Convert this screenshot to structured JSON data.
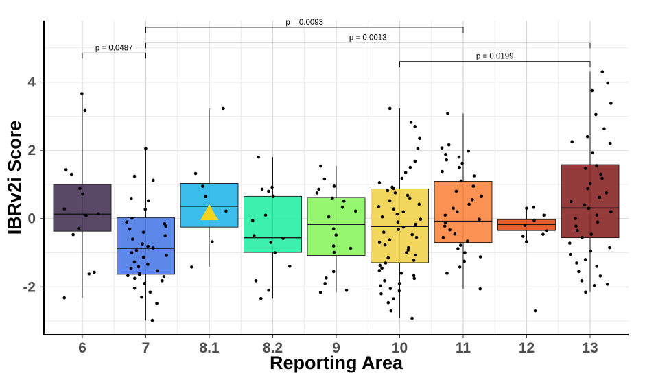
{
  "chart_data": {
    "type": "box",
    "xlabel": "Reporting Area",
    "ylabel": "IBRv2i Score",
    "ylim": [
      -3.4,
      5.8
    ],
    "yticks": [
      -2,
      0,
      2,
      4
    ],
    "categories": [
      "6",
      "7",
      "8.1",
      "8.2",
      "9",
      "10",
      "11",
      "12",
      "13"
    ],
    "grid": true,
    "boxes": [
      {
        "category": "6",
        "q1": -0.37,
        "median": 0.13,
        "q3": 1.0,
        "whisker_low": -2.32,
        "whisker_high": 3.66,
        "color": "#4b3a5a"
      },
      {
        "category": "7",
        "q1": -1.63,
        "median": -0.87,
        "q3": 0.03,
        "whisker_low": -2.98,
        "whisker_high": 2.05,
        "color": "#4f7de6"
      },
      {
        "category": "8.1",
        "q1": -0.25,
        "median": 0.36,
        "q3": 1.03,
        "whisker_low": -1.42,
        "whisker_high": 3.23,
        "color": "#2ab8ea"
      },
      {
        "category": "8.2",
        "q1": -0.99,
        "median": -0.56,
        "q3": 0.65,
        "whisker_low": -2.34,
        "whisker_high": 1.8,
        "color": "#2cefa6"
      },
      {
        "category": "9",
        "q1": -1.08,
        "median": -0.17,
        "q3": 0.62,
        "whisker_low": -2.16,
        "whisker_high": 1.54,
        "color": "#8ef563"
      },
      {
        "category": "10",
        "q1": -1.29,
        "median": -0.23,
        "q3": 0.87,
        "whisker_low": -2.92,
        "whisker_high": 3.23,
        "color": "#f2d34f"
      },
      {
        "category": "11",
        "q1": -0.7,
        "median": -0.08,
        "q3": 1.09,
        "whisker_low": -2.06,
        "whisker_high": 3.08,
        "color": "#fb8843"
      },
      {
        "category": "12",
        "q1": -0.35,
        "median": -0.17,
        "q3": -0.03,
        "whisker_low": -0.68,
        "whisker_high": 0.33,
        "color": "#e4531c"
      },
      {
        "category": "13",
        "q1": -0.56,
        "median": 0.31,
        "q3": 1.58,
        "whisker_low": -2.15,
        "whisker_high": 4.3,
        "color": "#8b2a2a"
      }
    ],
    "mean_marker": {
      "category": "8.1",
      "y": 0.16,
      "shape": "triangle",
      "color": "#f2d31d"
    },
    "points": {
      "6": [
        3.66,
        3.17,
        1.43,
        1.3,
        0.88,
        0.72,
        0.28,
        0.14,
        0.08,
        -0.29,
        -0.47,
        -1.57,
        -1.62,
        -2.32
      ],
      "7": [
        2.05,
        1.24,
        1.12,
        0.59,
        0.52,
        0.27,
        0.01,
        -0.1,
        -0.15,
        -0.22,
        -0.31,
        -0.4,
        -0.5,
        -0.6,
        -0.74,
        -0.81,
        -0.86,
        -0.93,
        -1.0,
        -1.08,
        -1.13,
        -1.27,
        -1.34,
        -1.41,
        -1.46,
        -1.53,
        -1.6,
        -1.64,
        -1.67,
        -1.7,
        -1.75,
        -1.82,
        -1.9,
        -2.04,
        -2.15,
        -2.3,
        -2.48,
        -2.98
      ],
      "8.1": [
        3.23,
        1.32,
        0.95,
        0.65,
        0.22,
        -0.68,
        -1.42
      ],
      "8.2": [
        1.8,
        0.92,
        0.86,
        0.8,
        0.66,
        0.1,
        -0.06,
        -0.5,
        -0.58,
        -0.7,
        -1.0,
        -1.4,
        -1.82,
        -2.1,
        -2.34
      ],
      "9": [
        1.54,
        1.16,
        0.95,
        0.86,
        0.75,
        0.6,
        0.51,
        0.33,
        0.22,
        0.05,
        -0.3,
        -0.48,
        -0.8,
        -0.87,
        -0.99,
        -1.55,
        -1.74,
        -1.9,
        -2.1,
        -2.16
      ],
      "10": [
        3.23,
        2.82,
        2.7,
        2.35,
        2.05,
        1.68,
        1.5,
        1.35,
        1.18,
        1.05,
        0.92,
        0.88,
        0.82,
        0.75,
        0.68,
        0.6,
        0.52,
        0.42,
        0.35,
        0.28,
        0.2,
        0.13,
        0.05,
        -0.02,
        -0.1,
        -0.17,
        -0.25,
        -0.32,
        -0.4,
        -0.47,
        -0.55,
        -0.62,
        -0.7,
        -0.77,
        -0.85,
        -0.92,
        -1.0,
        -1.07,
        -1.15,
        -1.22,
        -1.3,
        -1.37,
        -1.45,
        -1.52,
        -1.6,
        -1.67,
        -1.75,
        -1.82,
        -1.9,
        -1.97,
        -2.05,
        -2.12,
        -2.2,
        -2.35,
        -2.46,
        -2.7,
        -2.92
      ],
      "11": [
        3.08,
        2.16,
        2.07,
        1.98,
        1.88,
        1.8,
        1.72,
        1.62,
        1.5,
        1.38,
        1.25,
        1.1,
        0.95,
        0.8,
        0.66,
        0.55,
        0.42,
        0.3,
        0.2,
        0.1,
        -0.02,
        -0.12,
        -0.22,
        -0.33,
        -0.45,
        -0.55,
        -0.66,
        -0.78,
        -0.88,
        -1.0,
        -1.12,
        -1.25,
        -1.42,
        -1.6,
        -2.06
      ],
      "12": [
        0.33,
        0.3,
        0.1,
        -0.05,
        -0.2,
        -0.36,
        -0.46,
        -0.52,
        -0.68,
        -2.7
      ],
      "13": [
        4.3,
        3.97,
        3.75,
        3.38,
        3.05,
        2.63,
        2.4,
        2.25,
        2.2,
        1.93,
        1.55,
        1.47,
        1.3,
        1.18,
        1.02,
        0.88,
        0.75,
        0.62,
        0.5,
        0.4,
        0.3,
        0.2,
        0.1,
        0.0,
        -0.1,
        -0.22,
        -0.35,
        -0.46,
        -0.55,
        -0.72,
        -0.85,
        -0.95,
        -1.05,
        -1.2,
        -1.3,
        -1.4,
        -1.55,
        -1.68,
        -1.82,
        -1.92,
        -1.96,
        -2.15
      ]
    },
    "annotations": [
      {
        "from": "6",
        "to": "7",
        "label": "p = 0.0487",
        "level": 4.85
      },
      {
        "from": "7",
        "to": "11",
        "label": "p = 0.0093",
        "level": 5.6
      },
      {
        "from": "7",
        "to": "13",
        "label": "p = 0.0013",
        "level": 5.15
      },
      {
        "from": "10",
        "to": "13",
        "label": "p = 0.0199",
        "level": 4.6
      }
    ]
  }
}
